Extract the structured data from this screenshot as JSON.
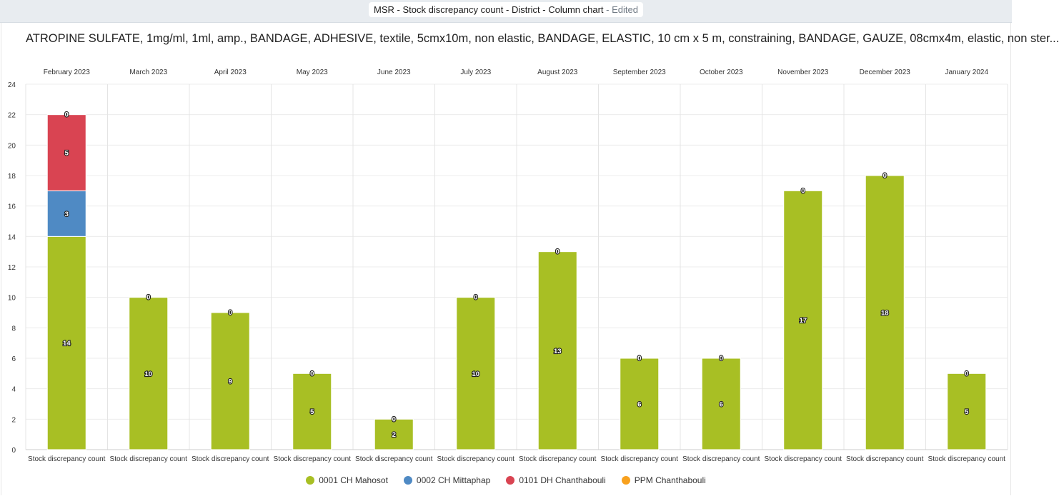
{
  "header": {
    "title": "MSR - Stock discrepancy count - District - Column chart",
    "edited": "- Edited"
  },
  "chart_data": {
    "type": "bar",
    "stacked": true,
    "title": "ATROPINE SULFATE, 1mg/ml, 1ml, amp., BANDAGE, ADHESIVE, textile, 5cmx10m, non elastic, BANDAGE, ELASTIC, 10 cm x 5 m, constraining, BANDAGE, GAUZE, 08cmx4m, elastic, non ster...",
    "periods": [
      "February 2023",
      "March 2023",
      "April 2023",
      "May 2023",
      "June 2023",
      "July 2023",
      "August 2023",
      "September 2023",
      "October 2023",
      "November 2023",
      "December 2023",
      "January 2024"
    ],
    "category_label": "Stock discrepancy count",
    "ylim": [
      0,
      24
    ],
    "yticks": [
      0,
      2,
      4,
      6,
      8,
      10,
      12,
      14,
      16,
      18,
      20,
      22,
      24
    ],
    "grid": true,
    "legend_position": "bottom",
    "series": [
      {
        "name": "0001 CH Mahosot",
        "color": "#a8bf24",
        "values": [
          14,
          10,
          9,
          5,
          2,
          10,
          13,
          6,
          6,
          17,
          18,
          5
        ]
      },
      {
        "name": "0002 CH Mittaphap",
        "color": "#4f8ac4",
        "values": [
          3,
          null,
          null,
          null,
          null,
          null,
          null,
          null,
          null,
          null,
          null,
          null
        ]
      },
      {
        "name": "0101 DH Chanthabouli",
        "color": "#d94452",
        "values": [
          5,
          null,
          null,
          null,
          null,
          null,
          null,
          null,
          null,
          null,
          null,
          null
        ]
      },
      {
        "name": "PPM Chanthabouli",
        "color": "#f8a11e",
        "values": [
          0,
          0,
          0,
          0,
          0,
          0,
          0,
          0,
          0,
          0,
          0,
          0
        ]
      }
    ]
  }
}
